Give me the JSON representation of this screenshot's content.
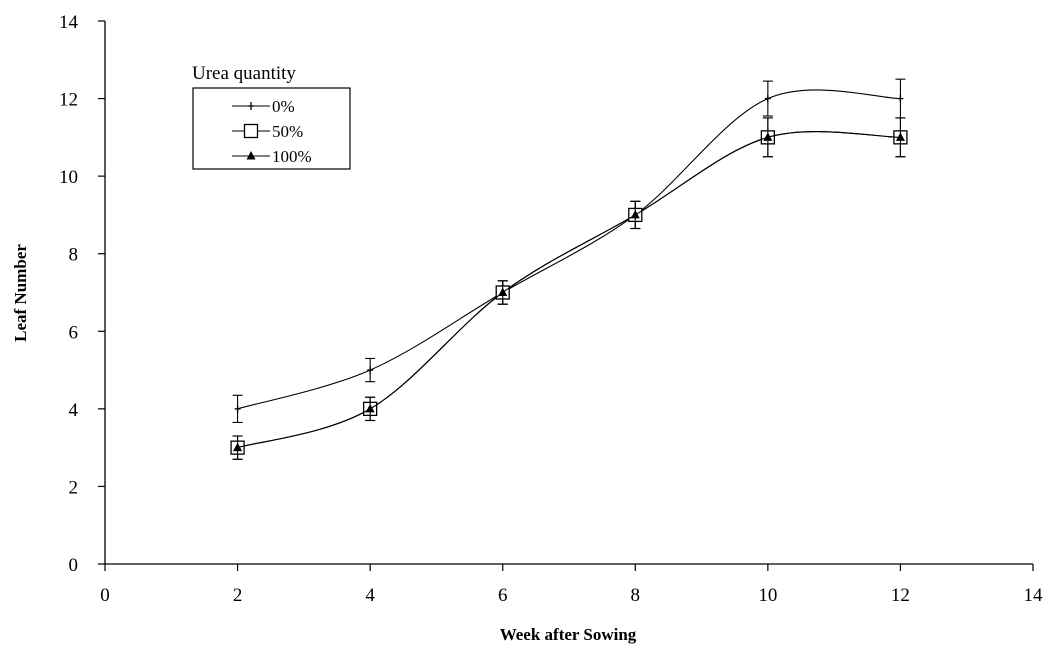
{
  "chart_data": {
    "type": "line",
    "title": "",
    "xlabel": "Week after Sowing",
    "ylabel": "Leaf Number",
    "xlim": [
      0,
      14
    ],
    "ylim": [
      0,
      14
    ],
    "xticks": [
      0,
      2,
      4,
      6,
      8,
      10,
      12,
      14
    ],
    "yticks": [
      0,
      2,
      4,
      6,
      8,
      10,
      12,
      14
    ],
    "grid": false,
    "legend": {
      "title": "Urea quantity",
      "position": "top-left"
    },
    "series": [
      {
        "name": "0%",
        "marker": "plus",
        "x": [
          2,
          4,
          6,
          8,
          10,
          12
        ],
        "y": [
          4,
          5,
          7,
          9,
          12,
          12
        ],
        "err": [
          0.35,
          0.3,
          0.3,
          0.35,
          0.45,
          0.5
        ]
      },
      {
        "name": "50%",
        "marker": "square",
        "x": [
          2,
          4,
          6,
          8,
          10,
          12
        ],
        "y": [
          3,
          4,
          7,
          9,
          11,
          11
        ],
        "err": [
          0.3,
          0.3,
          0.3,
          0.35,
          0.5,
          0.5
        ]
      },
      {
        "name": "100%",
        "marker": "triangle",
        "x": [
          2,
          4,
          6,
          8,
          10,
          12
        ],
        "y": [
          3,
          4,
          7,
          9,
          11,
          11
        ],
        "err": [
          0.3,
          0.3,
          0.3,
          0.35,
          0.5,
          0.5
        ]
      }
    ]
  }
}
